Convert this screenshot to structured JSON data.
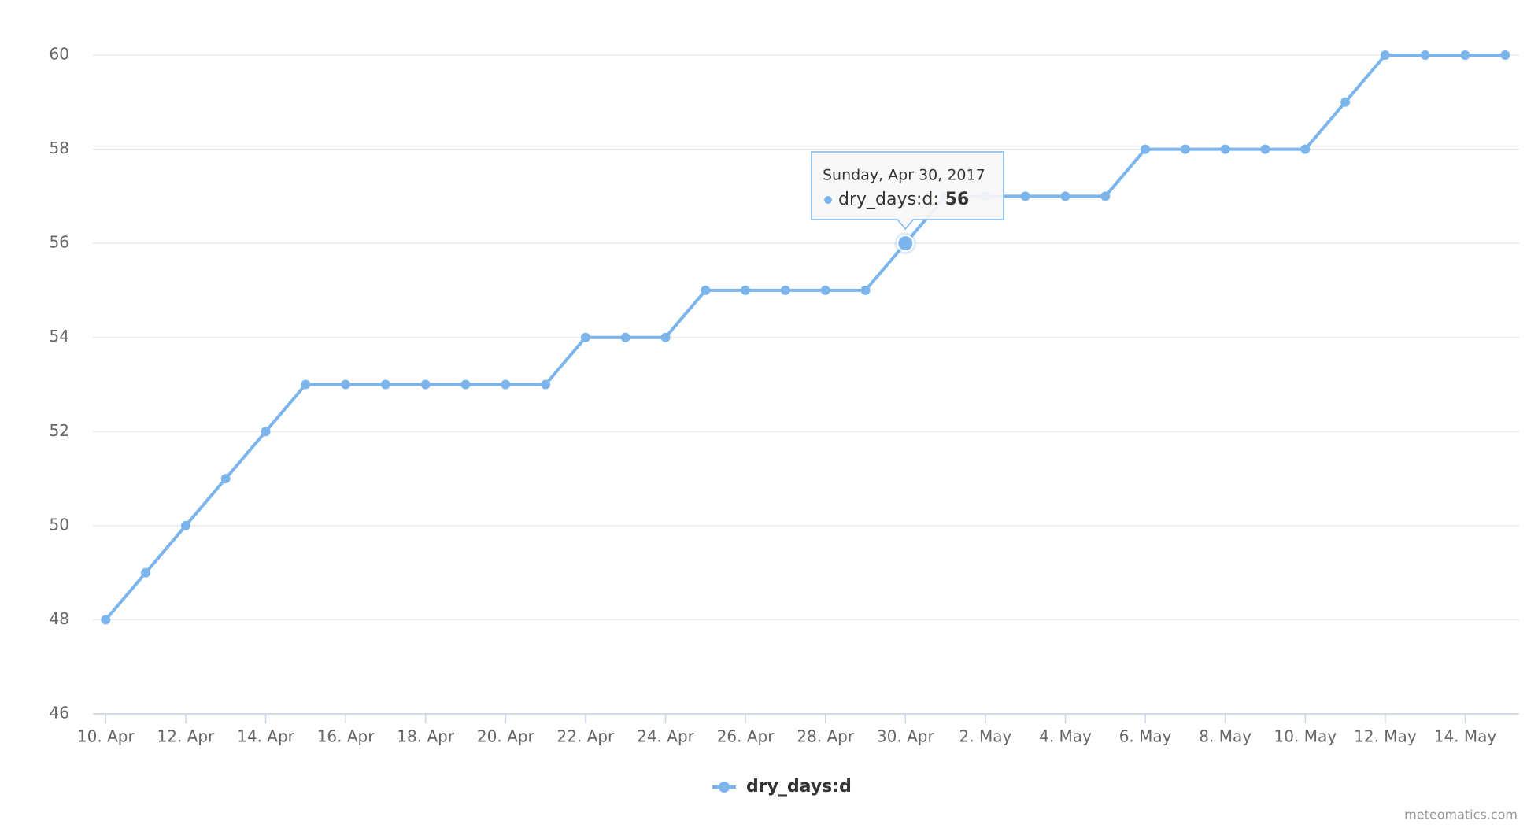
{
  "chart_data": {
    "type": "line",
    "categories": [
      "10. Apr",
      null,
      "12. Apr",
      null,
      "14. Apr",
      null,
      "16. Apr",
      null,
      "18. Apr",
      null,
      "20. Apr",
      null,
      "22. Apr",
      null,
      "24. Apr",
      null,
      "26. Apr",
      null,
      "28. Apr",
      null,
      "30. Apr",
      null,
      "2. May",
      null,
      "4. May",
      null,
      "6. May",
      null,
      "8. May",
      null,
      "10. May",
      null,
      "12. May",
      null,
      "14. May",
      null
    ],
    "series": [
      {
        "name": "dry_days:d",
        "color": "#7cb5ec",
        "values": [
          48,
          49,
          50,
          51,
          52,
          53,
          53,
          53,
          53,
          53,
          53,
          53,
          54,
          54,
          54,
          55,
          55,
          55,
          55,
          55,
          56,
          57,
          57,
          57,
          57,
          57,
          58,
          58,
          58,
          58,
          58,
          59,
          60,
          60,
          60,
          60
        ]
      }
    ],
    "ylim": [
      46,
      60
    ],
    "yticks": [
      46,
      48,
      50,
      52,
      54,
      56,
      58,
      60
    ],
    "grid": true,
    "legend": "bottom",
    "tooltip": {
      "title": "Sunday, Apr 30, 2017",
      "label": "dry_days:d:",
      "value": 56
    },
    "credit": "meteomatics.com"
  }
}
